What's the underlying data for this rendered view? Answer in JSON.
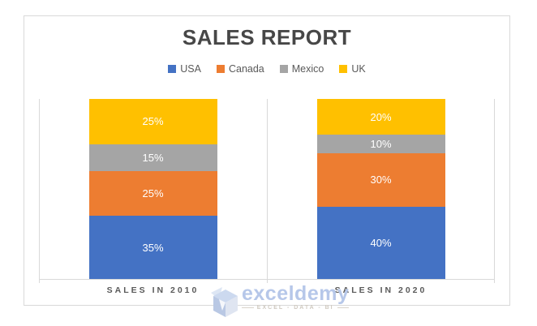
{
  "chart": {
    "title": "SALES REPORT"
  },
  "watermark": {
    "brand": "exceldemy",
    "tagline": "EXCEL - DATA - BI"
  },
  "colors": {
    "chart_border": "#d9d9d9",
    "title_text": "#474747",
    "legend_text": "#595959",
    "axis_text": "#595959",
    "data_label_text": "#ffffff",
    "watermark_blue": "#b6c7e9"
  },
  "chart_data": {
    "type": "bar",
    "subtype": "100%-stacked-column",
    "title": "SALES REPORT",
    "categories": [
      "SALES IN 2010",
      "SALES IN 2020"
    ],
    "series": [
      {
        "name": "USA",
        "color": "#4472C4",
        "values": [
          35,
          40
        ]
      },
      {
        "name": "Canada",
        "color": "#ED7D31",
        "values": [
          25,
          30
        ]
      },
      {
        "name": "Mexico",
        "color": "#A5A5A5",
        "values": [
          15,
          10
        ]
      },
      {
        "name": "UK",
        "color": "#FFC000",
        "values": [
          25,
          20
        ]
      }
    ],
    "value_format": "percent",
    "ylim": [
      0,
      100
    ],
    "xlabel": "",
    "ylabel": "",
    "legend_position": "top",
    "gridlines": "vertical-category-boundaries",
    "data_labels": "inside-center"
  }
}
